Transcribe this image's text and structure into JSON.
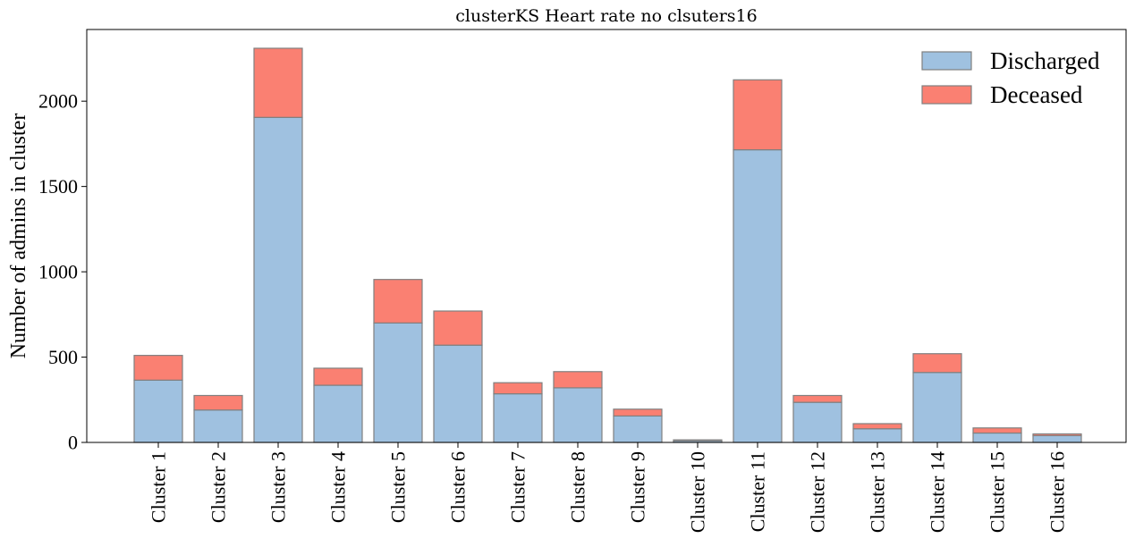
{
  "chart_data": {
    "type": "bar",
    "stacked": true,
    "title": "clusterKS Heart rate no clsuters16",
    "xlabel": "",
    "ylabel": "Number of admins in cluster",
    "categories": [
      "Cluster 1",
      "Cluster 2",
      "Cluster 3",
      "Cluster 4",
      "Cluster 5",
      "Cluster 6",
      "Cluster 7",
      "Cluster 8",
      "Cluster 9",
      "Cluster 10",
      "Cluster 11",
      "Cluster 12",
      "Cluster 13",
      "Cluster 14",
      "Cluster 15",
      "Cluster 16"
    ],
    "series": [
      {
        "name": "Discharged",
        "color": "#9fc1e0",
        "values": [
          365,
          190,
          1905,
          335,
          700,
          570,
          285,
          320,
          155,
          10,
          1715,
          235,
          80,
          410,
          55,
          40
        ]
      },
      {
        "name": "Deceased",
        "color": "#fa8072",
        "values": [
          145,
          85,
          405,
          100,
          255,
          200,
          65,
          95,
          40,
          5,
          410,
          40,
          30,
          110,
          30,
          10
        ]
      }
    ],
    "ylim": [
      0,
      2420
    ],
    "yticks": [
      0,
      500,
      1000,
      1500,
      2000
    ],
    "edge_color": "#808080",
    "legend_position": "top-right",
    "grid": false
  }
}
